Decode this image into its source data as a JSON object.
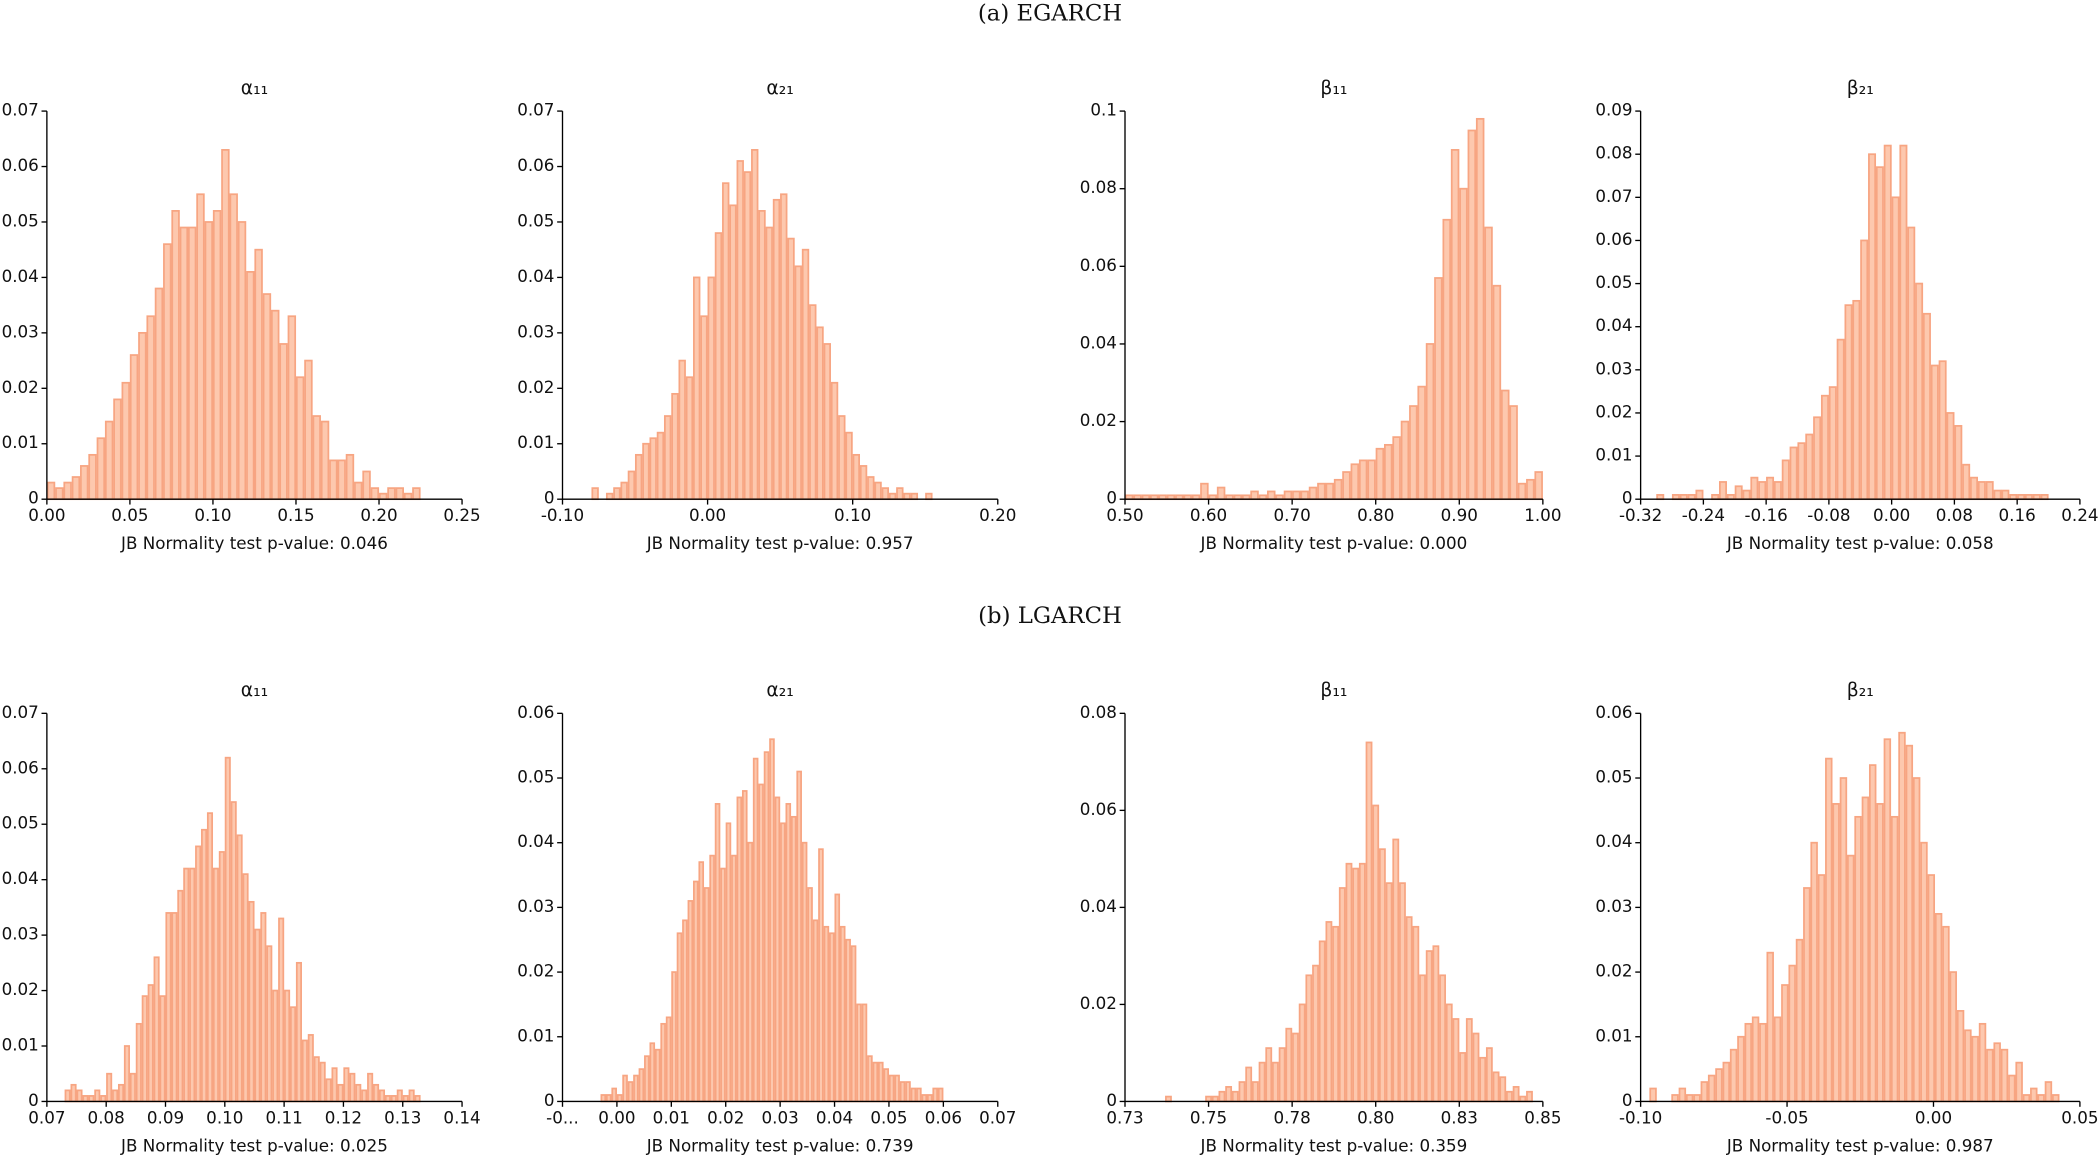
{
  "sections": [
    "(a) EGARCH",
    "(b) LGARCH"
  ],
  "chart_data": [
    {
      "type": "histogram",
      "title": "α₁₁",
      "xlabel": "JB Normality test p-value: 0.046",
      "color": "#f7a582",
      "bins": [
        0,
        0.005,
        0.01,
        0.015,
        0.02,
        0.025,
        0.03,
        0.035,
        0.04,
        0.045,
        0.05,
        0.055,
        0.06,
        0.065,
        0.07,
        0.075,
        0.08,
        0.085,
        0.09,
        0.095,
        0.1,
        0.105,
        0.11,
        0.115,
        0.12,
        0.125,
        0.13,
        0.135,
        0.14,
        0.145,
        0.15,
        0.155,
        0.16,
        0.165,
        0.17,
        0.175,
        0.18,
        0.185,
        0.19,
        0.195,
        0.2,
        0.205,
        0.21,
        0.215,
        0.22,
        0.225
      ],
      "counts": [
        0.003,
        0.002,
        0.003,
        0.004,
        0.006,
        0.008,
        0.011,
        0.014,
        0.018,
        0.021,
        0.026,
        0.03,
        0.033,
        0.038,
        0.046,
        0.052,
        0.049,
        0.049,
        0.055,
        0.05,
        0.052,
        0.063,
        0.055,
        0.05,
        0.041,
        0.045,
        0.037,
        0.034,
        0.028,
        0.033,
        0.022,
        0.025,
        0.015,
        0.014,
        0.007,
        0.007,
        0.008,
        0.003,
        0.005,
        0.002,
        0.001,
        0.002,
        0.002,
        0.001,
        0.002
      ],
      "xlim": [
        0,
        0.25
      ],
      "xticks": [
        {
          "value": 0,
          "label": "0.00"
        },
        0.05,
        {
          "value": 0.1,
          "label": "0.10"
        },
        0.15,
        {
          "value": 0.2,
          "label": "0.20"
        },
        0.25
      ],
      "ylim": [
        0,
        0.07
      ],
      "yticks": [
        0,
        0.01,
        0.02,
        0.03,
        0.04,
        0.05,
        0.06,
        0.07
      ]
    },
    {
      "type": "histogram",
      "title": "α₂₁",
      "xlabel": "JB Normality test p-value: 0.957",
      "color": "#f7a582",
      "bins": [
        -0.08,
        -0.075,
        -0.07,
        -0.065,
        -0.06,
        -0.055,
        -0.05,
        -0.045,
        -0.04,
        -0.035,
        -0.03,
        -0.025,
        -0.02,
        -0.015,
        -0.01,
        -0.005,
        0,
        0.005,
        0.01,
        0.015,
        0.02,
        0.025,
        0.03,
        0.035,
        0.04,
        0.045,
        0.05,
        0.055,
        0.06,
        0.065,
        0.07,
        0.075,
        0.08,
        0.085,
        0.09,
        0.095,
        0.1,
        0.105,
        0.11,
        0.115,
        0.12,
        0.125,
        0.13,
        0.135,
        0.14,
        0.145,
        0.15,
        0.155
      ],
      "counts": [
        0.002,
        0,
        0.001,
        0.002,
        0.003,
        0.005,
        0.008,
        0.01,
        0.011,
        0.012,
        0.015,
        0.019,
        0.025,
        0.022,
        0.04,
        0.033,
        0.04,
        0.048,
        0.057,
        0.053,
        0.061,
        0.059,
        0.063,
        0.052,
        0.049,
        0.054,
        0.055,
        0.047,
        0.042,
        0.045,
        0.035,
        0.031,
        0.028,
        0.021,
        0.015,
        0.012,
        0.008,
        0.006,
        0.004,
        0.003,
        0.002,
        0.001,
        0.002,
        0.001,
        0.001,
        0,
        0.001
      ],
      "xlim": [
        -0.1,
        0.2
      ],
      "xticks": [
        {
          "value": -0.1,
          "label": "-0.10"
        },
        {
          "value": 0,
          "label": "0.00"
        },
        {
          "value": 0.1,
          "label": "0.10"
        },
        {
          "value": 0.2,
          "label": "0.20"
        }
      ],
      "ylim": [
        0,
        0.07
      ],
      "yticks": [
        0,
        0.01,
        0.02,
        0.03,
        0.04,
        0.05,
        0.06,
        0.07
      ]
    },
    {
      "type": "histogram",
      "title": "β₁₁",
      "xlabel": "JB Normality test p-value: 0.000",
      "color": "#f7a582",
      "bins": [
        0.5,
        0.51,
        0.52,
        0.53,
        0.54,
        0.55,
        0.56,
        0.57,
        0.58,
        0.59,
        0.6,
        0.61,
        0.62,
        0.63,
        0.64,
        0.65,
        0.66,
        0.67,
        0.68,
        0.69,
        0.7,
        0.71,
        0.72,
        0.73,
        0.74,
        0.75,
        0.76,
        0.77,
        0.78,
        0.79,
        0.8,
        0.81,
        0.82,
        0.83,
        0.84,
        0.85,
        0.86,
        0.87,
        0.88,
        0.89,
        0.9,
        0.91,
        0.92,
        0.93,
        0.94,
        0.95,
        0.96,
        0.97,
        0.98,
        0.99,
        1.0
      ],
      "counts": [
        0.001,
        0.001,
        0.001,
        0.001,
        0.001,
        0.001,
        0.001,
        0.001,
        0.001,
        0.004,
        0.001,
        0.003,
        0.001,
        0.001,
        0.001,
        0.002,
        0.001,
        0.002,
        0.001,
        0.002,
        0.002,
        0.002,
        0.003,
        0.004,
        0.004,
        0.005,
        0.007,
        0.009,
        0.01,
        0.01,
        0.013,
        0.014,
        0.016,
        0.02,
        0.024,
        0.029,
        0.04,
        0.057,
        0.072,
        0.09,
        0.08,
        0.095,
        0.098,
        0.07,
        0.055,
        0.028,
        0.024,
        0.004,
        0.005,
        0.007
      ],
      "xlim": [
        0.5,
        1.0
      ],
      "xticks": [
        {
          "value": 0.5,
          "label": "0.50"
        },
        {
          "value": 0.6,
          "label": "0.60"
        },
        {
          "value": 0.7,
          "label": "0.70"
        },
        {
          "value": 0.8,
          "label": "0.80"
        },
        {
          "value": 0.9,
          "label": "0.90"
        },
        {
          "value": 1,
          "label": "1.00"
        }
      ],
      "ylim": [
        0,
        0.1
      ],
      "yticks": [
        0,
        0.02,
        0.04,
        0.06,
        0.08,
        0.1
      ]
    },
    {
      "type": "histogram",
      "title": "β₂₁",
      "xlabel": "JB Normality test p-value: 0.058",
      "color": "#f7a582",
      "bins": [
        -0.3,
        -0.29,
        -0.28,
        -0.27,
        -0.26,
        -0.25,
        -0.24,
        -0.23,
        -0.22,
        -0.21,
        -0.2,
        -0.19,
        -0.18,
        -0.17,
        -0.16,
        -0.15,
        -0.14,
        -0.13,
        -0.12,
        -0.11,
        -0.1,
        -0.09,
        -0.08,
        -0.07,
        -0.06,
        -0.05,
        -0.04,
        -0.03,
        -0.02,
        -0.01,
        0,
        0.01,
        0.02,
        0.03,
        0.04,
        0.05,
        0.06,
        0.07,
        0.08,
        0.09,
        0.1,
        0.11,
        0.12,
        0.13,
        0.14,
        0.15,
        0.16,
        0.17,
        0.18,
        0.19,
        0.2
      ],
      "counts": [
        0.001,
        0,
        0.001,
        0.001,
        0.001,
        0.002,
        0,
        0.001,
        0.004,
        0.001,
        0.003,
        0.002,
        0.005,
        0.004,
        0.005,
        0.004,
        0.009,
        0.012,
        0.013,
        0.015,
        0.019,
        0.024,
        0.026,
        0.037,
        0.045,
        0.046,
        0.06,
        0.08,
        0.077,
        0.082,
        0.07,
        0.082,
        0.063,
        0.05,
        0.043,
        0.031,
        0.032,
        0.02,
        0.017,
        0.008,
        0.005,
        0.004,
        0.004,
        0.002,
        0.002,
        0.001,
        0.001,
        0.001,
        0.001,
        0.001
      ],
      "xlim": [
        -0.32,
        0.24
      ],
      "xticks": [
        -0.32,
        -0.24,
        -0.16,
        -0.08,
        {
          "value": 0,
          "label": "0.00"
        },
        0.08,
        0.16,
        0.24
      ],
      "ylim": [
        0,
        0.09
      ],
      "yticks": [
        0,
        0.01,
        0.02,
        0.03,
        0.04,
        0.05,
        0.06,
        0.07,
        0.08,
        0.09
      ]
    },
    {
      "type": "histogram",
      "title": "α₁₁",
      "xlabel": "JB Normality test p-value: 0.025",
      "color": "#f7a582",
      "bins": [
        0.073,
        0.074,
        0.075,
        0.076,
        0.077,
        0.078,
        0.079,
        0.08,
        0.081,
        0.082,
        0.083,
        0.084,
        0.085,
        0.086,
        0.087,
        0.088,
        0.089,
        0.09,
        0.091,
        0.092,
        0.093,
        0.094,
        0.095,
        0.096,
        0.097,
        0.098,
        0.099,
        0.1,
        0.101,
        0.102,
        0.103,
        0.104,
        0.105,
        0.106,
        0.107,
        0.108,
        0.109,
        0.11,
        0.111,
        0.112,
        0.113,
        0.114,
        0.115,
        0.116,
        0.117,
        0.118,
        0.119,
        0.12,
        0.121,
        0.122,
        0.123,
        0.124,
        0.125,
        0.126,
        0.127,
        0.128,
        0.129,
        0.13,
        0.131,
        0.132,
        0.133
      ],
      "counts": [
        0.002,
        0.003,
        0.002,
        0.001,
        0.001,
        0.002,
        0.001,
        0.005,
        0.002,
        0.003,
        0.01,
        0.005,
        0.014,
        0.019,
        0.021,
        0.026,
        0.019,
        0.034,
        0.034,
        0.038,
        0.042,
        0.042,
        0.046,
        0.049,
        0.052,
        0.042,
        0.045,
        0.062,
        0.054,
        0.048,
        0.041,
        0.036,
        0.031,
        0.034,
        0.028,
        0.02,
        0.033,
        0.02,
        0.017,
        0.025,
        0.011,
        0.012,
        0.008,
        0.007,
        0.004,
        0.006,
        0.003,
        0.006,
        0.005,
        0.003,
        0.002,
        0.005,
        0.003,
        0.002,
        0.001,
        0.001,
        0.002,
        0.001,
        0.002,
        0.001
      ],
      "xlim": [
        0.07,
        0.14
      ],
      "xticks": [
        0.07,
        0.08,
        0.09,
        {
          "value": 0.1,
          "label": "0.10"
        },
        0.11,
        0.12,
        0.13,
        0.14
      ],
      "ylim": [
        0,
        0.07
      ],
      "yticks": [
        0,
        0.01,
        0.02,
        0.03,
        0.04,
        0.05,
        0.06,
        0.07
      ]
    },
    {
      "type": "histogram",
      "title": "α₂₁",
      "xlabel": "JB Normality test p-value: 0.739",
      "color": "#f7a582",
      "bins": [
        -0.003,
        -0.002,
        -0.001,
        0,
        0.001,
        0.002,
        0.003,
        0.004,
        0.005,
        0.006,
        0.007,
        0.008,
        0.009,
        0.01,
        0.011,
        0.012,
        0.013,
        0.014,
        0.015,
        0.016,
        0.017,
        0.018,
        0.019,
        0.02,
        0.021,
        0.022,
        0.023,
        0.024,
        0.025,
        0.026,
        0.027,
        0.028,
        0.029,
        0.03,
        0.031,
        0.032,
        0.033,
        0.034,
        0.035,
        0.036,
        0.037,
        0.038,
        0.039,
        0.04,
        0.041,
        0.042,
        0.043,
        0.044,
        0.045,
        0.046,
        0.047,
        0.048,
        0.049,
        0.05,
        0.051,
        0.052,
        0.053,
        0.054,
        0.055,
        0.056,
        0.057,
        0.058,
        0.059,
        0.06
      ],
      "counts": [
        0.001,
        0.001,
        0.002,
        0.001,
        0.004,
        0.003,
        0.004,
        0.005,
        0.007,
        0.009,
        0.008,
        0.012,
        0.013,
        0.02,
        0.026,
        0.028,
        0.031,
        0.034,
        0.037,
        0.033,
        0.038,
        0.046,
        0.036,
        0.043,
        0.038,
        0.047,
        0.048,
        0.04,
        0.053,
        0.049,
        0.054,
        0.056,
        0.047,
        0.043,
        0.046,
        0.044,
        0.051,
        0.04,
        0.033,
        0.028,
        0.039,
        0.027,
        0.026,
        0.032,
        0.027,
        0.025,
        0.024,
        0.015,
        0.015,
        0.007,
        0.006,
        0.006,
        0.005,
        0.004,
        0.004,
        0.003,
        0.003,
        0.002,
        0.002,
        0.001,
        0.001,
        0.002,
        0.002
      ],
      "xlim": [
        -0.01,
        0.07
      ],
      "xticks": [
        {
          "value": -0.01,
          "label": "-0..."
        },
        {
          "value": 0,
          "label": "0.00"
        },
        0.01,
        0.02,
        0.03,
        0.04,
        0.05,
        0.06,
        0.07
      ],
      "ylim": [
        0,
        0.06
      ],
      "yticks": [
        0,
        0.01,
        0.02,
        0.03,
        0.04,
        0.05,
        0.06
      ]
    },
    {
      "type": "histogram",
      "title": "β₁₁",
      "xlabel": "JB Normality test p-value: 0.359",
      "color": "#f7a582",
      "bins": [
        0.737,
        0.739,
        0.741,
        0.743,
        0.745,
        0.747,
        0.749,
        0.751,
        0.753,
        0.755,
        0.757,
        0.759,
        0.761,
        0.763,
        0.765,
        0.767,
        0.769,
        0.771,
        0.773,
        0.775,
        0.777,
        0.779,
        0.781,
        0.783,
        0.785,
        0.787,
        0.789,
        0.791,
        0.793,
        0.795,
        0.797,
        0.799,
        0.801,
        0.803,
        0.805,
        0.807,
        0.809,
        0.811,
        0.813,
        0.815,
        0.817,
        0.819,
        0.821,
        0.823,
        0.825,
        0.827,
        0.829,
        0.831,
        0.833,
        0.835,
        0.837,
        0.839,
        0.841,
        0.843,
        0.845,
        0.847
      ],
      "counts": [
        0.001,
        0,
        0,
        0,
        0,
        0,
        0.001,
        0.001,
        0.002,
        0.003,
        0.002,
        0.004,
        0.007,
        0.004,
        0.008,
        0.011,
        0.008,
        0.011,
        0.015,
        0.014,
        0.02,
        0.026,
        0.028,
        0.033,
        0.037,
        0.036,
        0.044,
        0.049,
        0.048,
        0.049,
        0.074,
        0.061,
        0.052,
        0.045,
        0.054,
        0.045,
        0.038,
        0.036,
        0.026,
        0.031,
        0.032,
        0.026,
        0.02,
        0.017,
        0.01,
        0.017,
        0.014,
        0.009,
        0.011,
        0.006,
        0.005,
        0.002,
        0.003,
        0.001,
        0.002
      ],
      "xlim": [
        0.725,
        0.85
      ],
      "xticks": [
        {
          "value": 0.725,
          "label": "0.73"
        },
        0.75,
        {
          "value": 0.775,
          "label": "0.78"
        },
        {
          "value": 0.8,
          "label": "0.80"
        },
        {
          "value": 0.825,
          "label": "0.83"
        },
        0.85
      ],
      "ylim": [
        0,
        0.08
      ],
      "yticks": [
        0,
        0.02,
        0.04,
        0.06,
        0.08
      ]
    },
    {
      "type": "histogram",
      "title": "β₂₁",
      "xlabel": "JB Normality test p-value: 0.987",
      "color": "#f7a582",
      "bins": [
        -0.097,
        -0.0945,
        -0.092,
        -0.0895,
        -0.087,
        -0.0845,
        -0.082,
        -0.0795,
        -0.077,
        -0.0745,
        -0.072,
        -0.0695,
        -0.067,
        -0.0645,
        -0.062,
        -0.0595,
        -0.057,
        -0.0545,
        -0.052,
        -0.0495,
        -0.047,
        -0.0445,
        -0.042,
        -0.0395,
        -0.037,
        -0.0345,
        -0.032,
        -0.0295,
        -0.027,
        -0.0245,
        -0.022,
        -0.0195,
        -0.017,
        -0.0145,
        -0.012,
        -0.0095,
        -0.007,
        -0.0045,
        -0.002,
        0.0005,
        0.003,
        0.0055,
        0.008,
        0.0105,
        0.013,
        0.0155,
        0.018,
        0.0205,
        0.023,
        0.0255,
        0.028,
        0.0305,
        0.033,
        0.0355,
        0.038,
        0.0405,
        0.043
      ],
      "counts": [
        0.002,
        0,
        0,
        0.001,
        0.002,
        0.001,
        0.001,
        0.003,
        0.004,
        0.005,
        0.006,
        0.008,
        0.01,
        0.012,
        0.013,
        0.012,
        0.023,
        0.013,
        0.018,
        0.021,
        0.025,
        0.033,
        0.04,
        0.035,
        0.053,
        0.046,
        0.05,
        0.038,
        0.044,
        0.047,
        0.052,
        0.046,
        0.056,
        0.044,
        0.057,
        0.055,
        0.05,
        0.04,
        0.035,
        0.029,
        0.027,
        0.02,
        0.014,
        0.011,
        0.01,
        0.012,
        0.008,
        0.009,
        0.008,
        0.004,
        0.006,
        0.001,
        0.002,
        0.001,
        0.003,
        0.001
      ],
      "xlim": [
        -0.1,
        0.05
      ],
      "xticks": [
        {
          "value": -0.1,
          "label": "-0.10"
        },
        -0.05,
        {
          "value": 0,
          "label": "0.00"
        },
        0.05
      ],
      "ylim": [
        0,
        0.06
      ],
      "yticks": [
        0,
        0.01,
        0.02,
        0.03,
        0.04,
        0.05,
        0.06
      ]
    }
  ]
}
